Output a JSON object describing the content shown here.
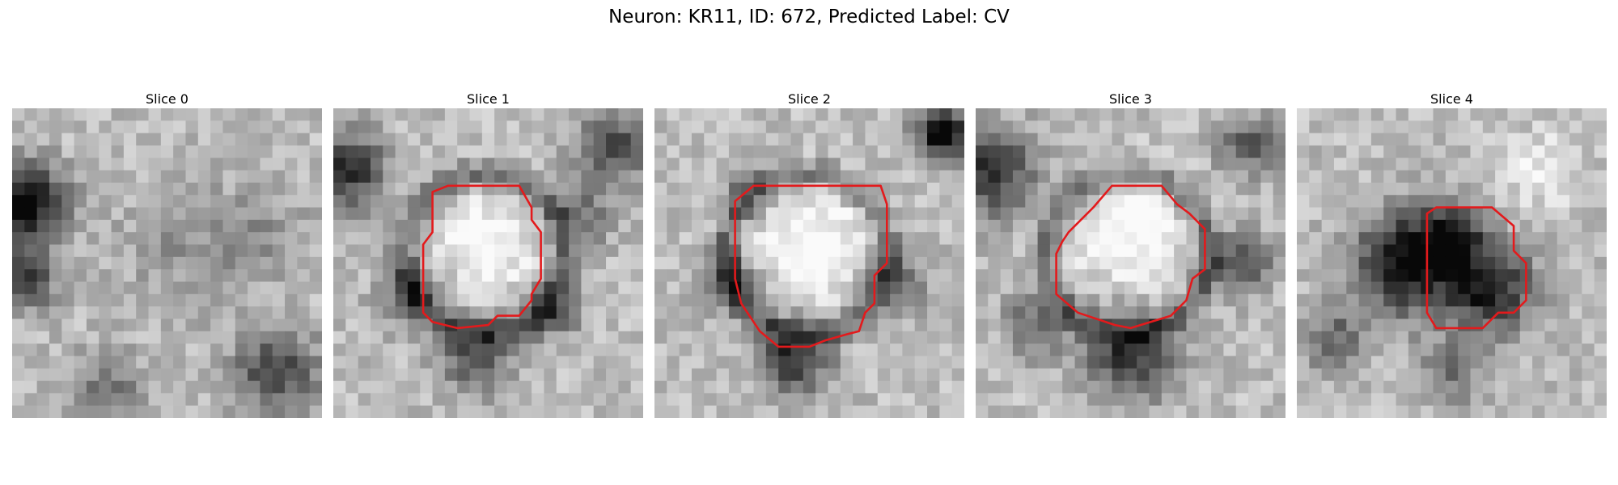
{
  "figure": {
    "title": "Neuron: KR11, ID: 672, Predicted Label: CV",
    "contour_color": "#e31a1c",
    "colormap": "grayscale"
  },
  "slices": [
    {
      "title": "Slice 0",
      "has_contour": false
    },
    {
      "title": "Slice 1",
      "has_contour": true
    },
    {
      "title": "Slice 2",
      "has_contour": true
    },
    {
      "title": "Slice 3",
      "has_contour": true
    },
    {
      "title": "Slice 4",
      "has_contour": true
    }
  ]
}
